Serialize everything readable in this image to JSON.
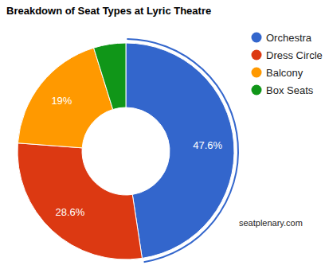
{
  "chart_data": {
    "type": "pie",
    "title": "Breakdown of Seat Types at Lyric Theatre",
    "categories": [
      "Orchestra",
      "Dress Circle",
      "Balcony",
      "Box Seats"
    ],
    "values": [
      47.6,
      28.6,
      19,
      4.8
    ],
    "value_labels": [
      "47.6%",
      "28.6%",
      "19%",
      null
    ],
    "colors": [
      "#3366cc",
      "#dc3912",
      "#ff9900",
      "#109618"
    ],
    "data_labels": true,
    "legend": "right",
    "annotations": [
      "seatplenary.com"
    ]
  }
}
